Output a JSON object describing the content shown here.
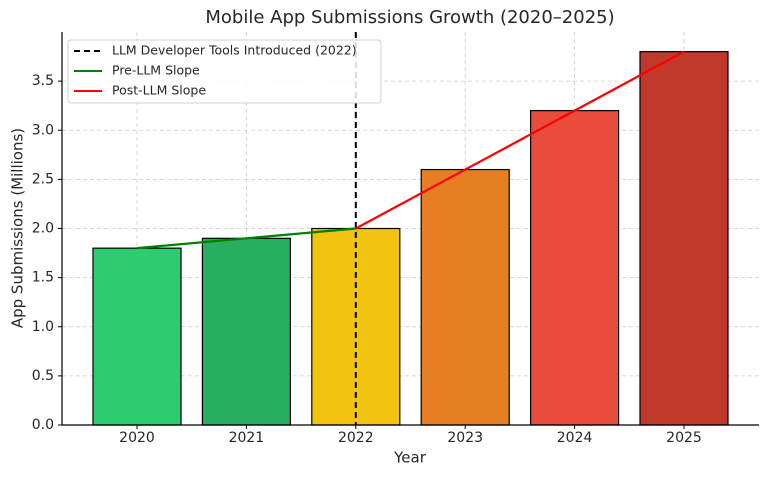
{
  "chart_data": {
    "type": "bar",
    "title": "Mobile App Submissions Growth (2020–2025)",
    "xlabel": "Year",
    "ylabel": "App Submissions (Millions)",
    "categories": [
      "2020",
      "2021",
      "2022",
      "2023",
      "2024",
      "2025"
    ],
    "values": [
      1.8,
      1.9,
      2.0,
      2.6,
      3.2,
      3.8
    ],
    "colors": [
      "#2ecc71",
      "#27ae60",
      "#f1c40f",
      "#e67e22",
      "#e74c3c",
      "#c0392b"
    ],
    "ylim": [
      0,
      4
    ],
    "yticks": [
      {
        "value": 0,
        "label": "0.0"
      },
      0.5,
      {
        "value": 1,
        "label": "1.0"
      },
      1.5,
      {
        "value": 2,
        "label": "2.0"
      },
      2.5,
      {
        "value": 3,
        "label": "3.0"
      },
      3.5
    ],
    "grid": true,
    "legend": "upper left",
    "vline": {
      "x": "2022",
      "name": "LLM Developer Tools Introduced (2022)",
      "color": "#000000"
    },
    "series": [
      {
        "name": "Pre-LLM Slope",
        "color": "#008000",
        "values": [
          1.8,
          1.9,
          2.0,
          null,
          null,
          null
        ]
      },
      {
        "name": "Post-LLM Slope",
        "color": "#ff0000",
        "values": [
          null,
          null,
          2.0,
          2.6,
          3.2,
          3.8
        ]
      }
    ]
  }
}
